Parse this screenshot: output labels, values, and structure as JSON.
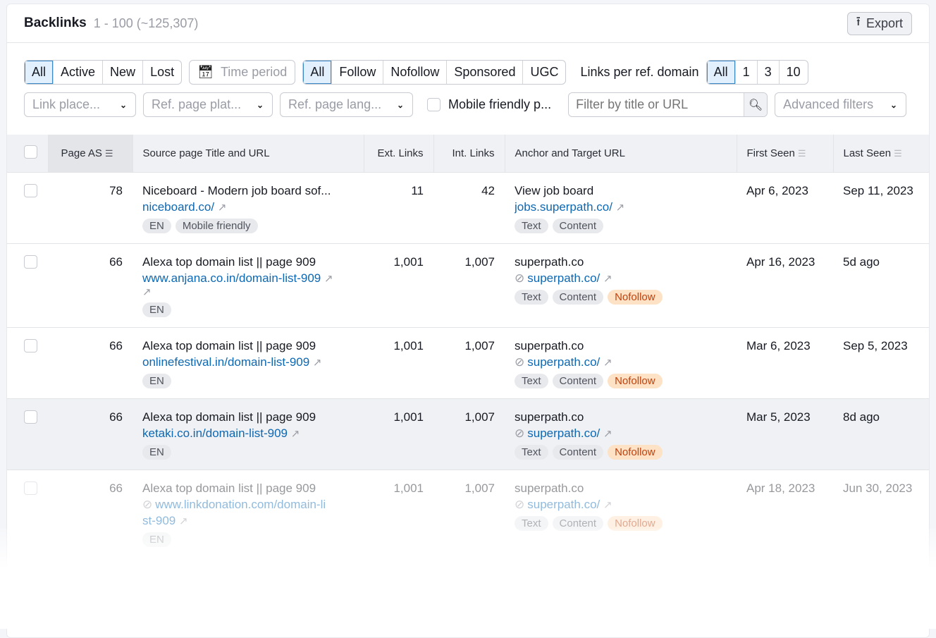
{
  "header": {
    "title": "Backlinks",
    "count": "1 - 100 (~125,307)",
    "export_label": "Export"
  },
  "filters": {
    "status": [
      {
        "label": "All",
        "active": true
      },
      {
        "label": "Active"
      },
      {
        "label": "New"
      },
      {
        "label": "Lost"
      }
    ],
    "time_period": "Time period",
    "link_type": [
      {
        "label": "All",
        "active": true
      },
      {
        "label": "Follow"
      },
      {
        "label": "Nofollow"
      },
      {
        "label": "Sponsored"
      },
      {
        "label": "UGC"
      }
    ],
    "links_per_label": "Links per ref. domain",
    "links_per": [
      {
        "label": "All",
        "active": true
      },
      {
        "label": "1"
      },
      {
        "label": "3"
      },
      {
        "label": "10"
      }
    ],
    "link_placement": "Link place...",
    "ref_platform": "Ref. page plat...",
    "ref_lang": "Ref. page lang...",
    "mobile_label": "Mobile friendly p...",
    "search_placeholder": "Filter by title or URL",
    "advanced": "Advanced filters"
  },
  "columns": [
    "Page AS",
    "Source page Title and URL",
    "Ext. Links",
    "Int. Links",
    "Anchor and Target URL",
    "First Seen",
    "Last Seen"
  ],
  "rows": [
    {
      "as": "78",
      "title": "Niceboard - Modern job board sof...",
      "url": "niceboard.co/",
      "url2": "",
      "src_tags": [
        "EN",
        "Mobile friendly"
      ],
      "ext": "11",
      "int": "42",
      "anchor": "View job board",
      "target": "jobs.superpath.co/",
      "tgt_tags": [
        "Text",
        "Content"
      ],
      "first": "Apr 6, 2023",
      "last": "Sep 11, 2023"
    },
    {
      "as": "66",
      "title": "Alexa top domain list || page 909",
      "url": "www.anjana.co.in/domain-list-909",
      "url2": "",
      "src_tags": [
        "EN"
      ],
      "ext": "1,001",
      "int": "1,007",
      "anchor": "superpath.co",
      "target": "superpath.co/",
      "tgt_tags": [
        "Text",
        "Content",
        "Nofollow"
      ],
      "first": "Apr 16, 2023",
      "last": "5d ago"
    },
    {
      "as": "66",
      "title": "Alexa top domain list || page 909",
      "url": "onlinefestival.in/domain-list-909",
      "url2": "",
      "src_tags": [
        "EN"
      ],
      "ext": "1,001",
      "int": "1,007",
      "anchor": "superpath.co",
      "target": "superpath.co/",
      "tgt_tags": [
        "Text",
        "Content",
        "Nofollow"
      ],
      "first": "Mar 6, 2023",
      "last": "Sep 5, 2023"
    },
    {
      "as": "66",
      "title": "Alexa top domain list || page 909",
      "url": "ketaki.co.in/domain-list-909",
      "url2": "",
      "src_tags": [
        "EN"
      ],
      "ext": "1,001",
      "int": "1,007",
      "anchor": "superpath.co",
      "target": "superpath.co/",
      "tgt_tags": [
        "Text",
        "Content",
        "Nofollow"
      ],
      "first": "Mar 5, 2023",
      "last": "8d ago"
    },
    {
      "as": "66",
      "title": "Alexa top domain list || page 909",
      "url": "www.linkdonation.com/domain-li",
      "url2": "st-909",
      "src_tags": [
        "EN"
      ],
      "ext": "1,001",
      "int": "1,007",
      "anchor": "superpath.co",
      "target": "superpath.co/",
      "tgt_tags": [
        "Text",
        "Content",
        "Nofollow"
      ],
      "first": "Apr 18, 2023",
      "last": "Jun 30, 2023"
    }
  ]
}
